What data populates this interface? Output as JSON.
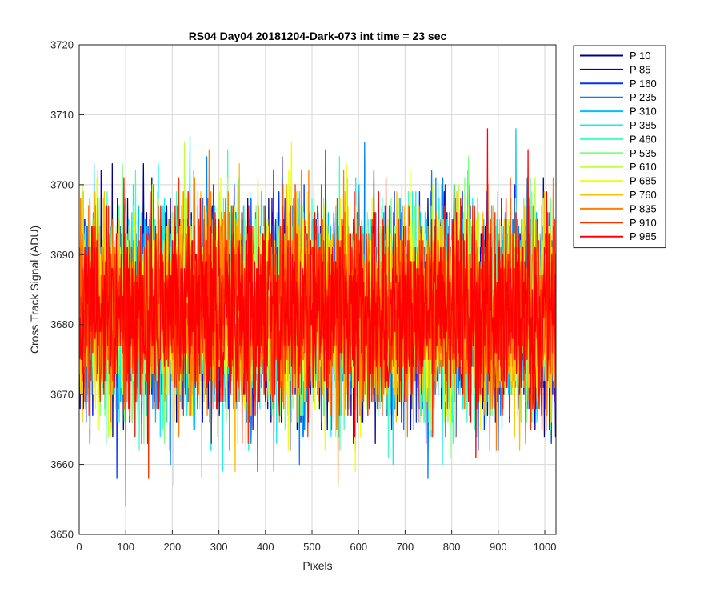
{
  "chart_data": {
    "type": "line",
    "title": "RS04 Day04 20181204-Dark-073 int time = 23 sec",
    "xlabel": "Pixels",
    "ylabel": "Cross Track Signal (ADU)",
    "xlim": [
      0,
      1024
    ],
    "ylim": [
      3650,
      3720
    ],
    "xticks": [
      0,
      100,
      200,
      300,
      400,
      500,
      600,
      700,
      800,
      900,
      1000
    ],
    "yticks": [
      3650,
      3660,
      3670,
      3680,
      3690,
      3700,
      3710,
      3720
    ],
    "grid": true,
    "legend_position": "outside-top-right",
    "n_points_per_series": 1024,
    "center_value": 3682,
    "noise_amplitude": 7,
    "series": [
      {
        "name": "P 10",
        "color": "#00008f"
      },
      {
        "name": "P 85",
        "color": "#0000df"
      },
      {
        "name": "P 160",
        "color": "#0030ff"
      },
      {
        "name": "P 235",
        "color": "#0080ff"
      },
      {
        "name": "P 310",
        "color": "#00bfff"
      },
      {
        "name": "P 385",
        "color": "#10efef"
      },
      {
        "name": "P 460",
        "color": "#40ffbf"
      },
      {
        "name": "P 535",
        "color": "#80ff80"
      },
      {
        "name": "P 610",
        "color": "#bfff40"
      },
      {
        "name": "P 685",
        "color": "#efff10"
      },
      {
        "name": "P 760",
        "color": "#ffbf00"
      },
      {
        "name": "P 835",
        "color": "#ff8000"
      },
      {
        "name": "P 910",
        "color": "#ff3000"
      },
      {
        "name": "P 985",
        "color": "#ff0000"
      }
    ]
  }
}
